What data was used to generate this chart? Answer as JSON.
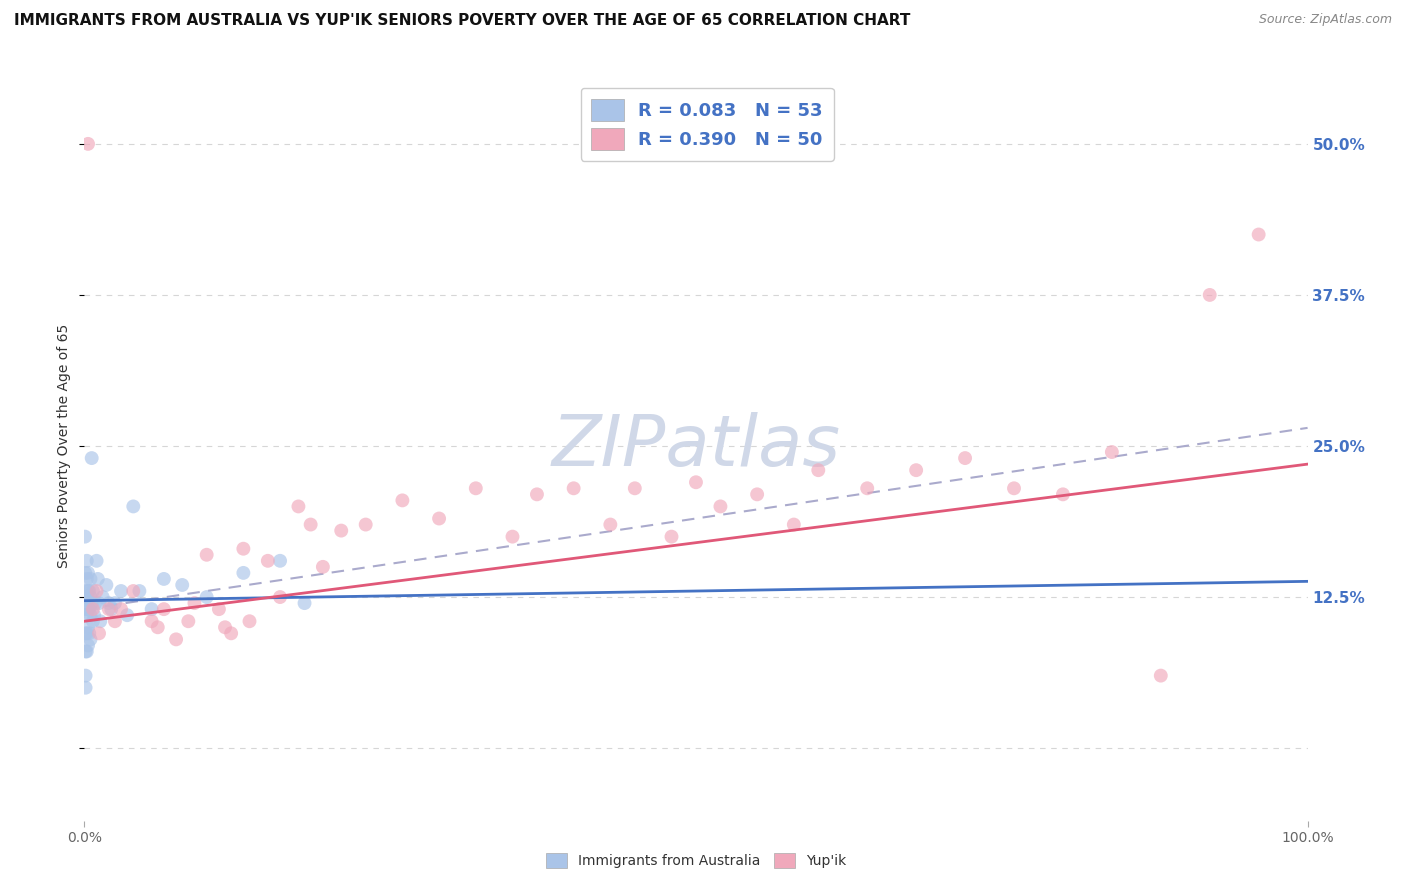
{
  "title": "IMMIGRANTS FROM AUSTRALIA VS YUP'IK SENIORS POVERTY OVER THE AGE OF 65 CORRELATION CHART",
  "source": "Source: ZipAtlas.com",
  "ylabel": "Seniors Poverty Over the Age of 65",
  "ytick_vals": [
    0.0,
    0.125,
    0.25,
    0.375,
    0.5
  ],
  "ytick_labels": [
    "",
    "12.5%",
    "25.0%",
    "37.5%",
    "50.0%"
  ],
  "xtick_vals": [
    0.0,
    1.0
  ],
  "xtick_labels": [
    "0.0%",
    "100.0%"
  ],
  "xlim": [
    0.0,
    1.0
  ],
  "ylim": [
    -0.06,
    0.56
  ],
  "background_color": "#ffffff",
  "grid_color": "#cccccc",
  "australia_dot_color": "#aac4e8",
  "yupik_dot_color": "#f0a8bb",
  "australia_line_color": "#4472c4",
  "yupik_line_color": "#e05878",
  "dash_line_color": "#aaaacc",
  "legend_text_color": "#4472c4",
  "legend_label_aus": "R = 0.083   N = 53",
  "legend_label_yupik": "R = 0.390   N = 50",
  "watermark_text": "ZIPatlas",
  "watermark_color": "#d0d8e8",
  "title_fontsize": 11,
  "source_fontsize": 9,
  "tick_fontsize": 10,
  "ylabel_fontsize": 10,
  "legend_fontsize": 13,
  "dot_size": 100,
  "dot_alpha": 0.65,
  "aus_x": [
    0.0003,
    0.0005,
    0.0007,
    0.001,
    0.001,
    0.001,
    0.001,
    0.001,
    0.0015,
    0.002,
    0.002,
    0.002,
    0.002,
    0.002,
    0.002,
    0.003,
    0.003,
    0.003,
    0.003,
    0.003,
    0.004,
    0.004,
    0.004,
    0.005,
    0.005,
    0.005,
    0.005,
    0.006,
    0.006,
    0.007,
    0.007,
    0.008,
    0.009,
    0.01,
    0.011,
    0.012,
    0.013,
    0.015,
    0.018,
    0.02,
    0.022,
    0.025,
    0.03,
    0.035,
    0.04,
    0.045,
    0.055,
    0.065,
    0.08,
    0.1,
    0.13,
    0.16,
    0.18
  ],
  "aus_y": [
    0.125,
    0.175,
    0.145,
    0.115,
    0.095,
    0.08,
    0.06,
    0.05,
    0.13,
    0.155,
    0.14,
    0.125,
    0.11,
    0.095,
    0.08,
    0.145,
    0.13,
    0.115,
    0.1,
    0.085,
    0.13,
    0.115,
    0.095,
    0.14,
    0.125,
    0.11,
    0.09,
    0.24,
    0.12,
    0.13,
    0.105,
    0.11,
    0.12,
    0.155,
    0.14,
    0.12,
    0.105,
    0.125,
    0.135,
    0.12,
    0.115,
    0.12,
    0.13,
    0.11,
    0.2,
    0.13,
    0.115,
    0.14,
    0.135,
    0.125,
    0.145,
    0.155,
    0.12
  ],
  "yupik_x": [
    0.003,
    0.007,
    0.01,
    0.012,
    0.02,
    0.025,
    0.03,
    0.04,
    0.055,
    0.06,
    0.065,
    0.075,
    0.085,
    0.09,
    0.1,
    0.11,
    0.115,
    0.12,
    0.13,
    0.135,
    0.15,
    0.16,
    0.175,
    0.185,
    0.195,
    0.21,
    0.23,
    0.26,
    0.29,
    0.32,
    0.35,
    0.37,
    0.4,
    0.43,
    0.45,
    0.48,
    0.5,
    0.52,
    0.55,
    0.58,
    0.6,
    0.64,
    0.68,
    0.72,
    0.76,
    0.8,
    0.84,
    0.88,
    0.92,
    0.96
  ],
  "yupik_y": [
    0.5,
    0.115,
    0.13,
    0.095,
    0.115,
    0.105,
    0.115,
    0.13,
    0.105,
    0.1,
    0.115,
    0.09,
    0.105,
    0.12,
    0.16,
    0.115,
    0.1,
    0.095,
    0.165,
    0.105,
    0.155,
    0.125,
    0.2,
    0.185,
    0.15,
    0.18,
    0.185,
    0.205,
    0.19,
    0.215,
    0.175,
    0.21,
    0.215,
    0.185,
    0.215,
    0.175,
    0.22,
    0.2,
    0.21,
    0.185,
    0.23,
    0.215,
    0.23,
    0.24,
    0.215,
    0.21,
    0.245,
    0.06,
    0.375,
    0.425
  ],
  "aus_trend": [
    0.122,
    0.138
  ],
  "yupik_trend": [
    0.105,
    0.235
  ],
  "dash_trend": [
    0.115,
    0.265
  ]
}
